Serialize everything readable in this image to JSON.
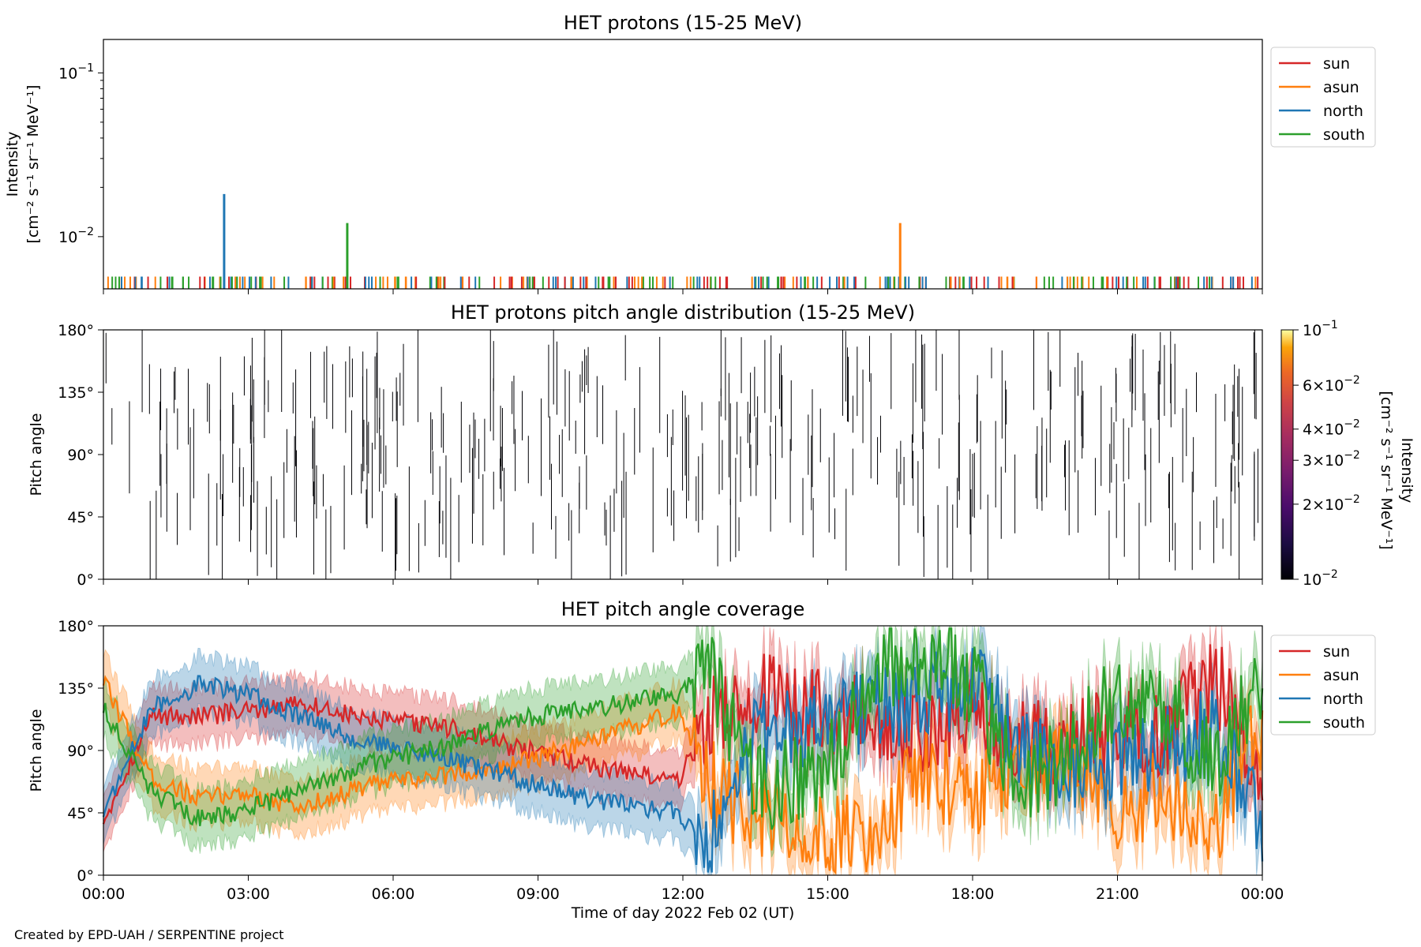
{
  "credit": "Created by EPD-UAH / SERPENTINE project",
  "colors": {
    "sun": "#d62728",
    "asun": "#ff7f0e",
    "north": "#1f77b4",
    "south": "#2ca02c"
  },
  "chart_data": [
    {
      "type": "line",
      "title": "HET protons (15-25 MeV)",
      "ylabel_line1": "Intensity",
      "ylabel_line2": "[cm⁻² s⁻¹ sr⁻¹ MeV⁻¹]",
      "yscale": "log",
      "ylim": [
        0.0048,
        0.16
      ],
      "xlim": [
        0,
        24
      ],
      "yticks": [
        {
          "v": 0.1,
          "base": "10",
          "exp": "−1"
        },
        {
          "v": 0.01,
          "base": "10",
          "exp": "−2"
        }
      ],
      "legend": [
        "sun",
        "asun",
        "north",
        "south"
      ],
      "legend_position": "outside-top-right",
      "baseline_value": 0.0057,
      "spikes": [
        {
          "series": "north",
          "x": 2.5,
          "value": 0.0182
        },
        {
          "series": "south",
          "x": 5.05,
          "value": 0.0121
        },
        {
          "series": "asun",
          "x": 16.5,
          "value": 0.0121
        }
      ]
    },
    {
      "type": "heatmap",
      "title": "HET protons pitch angle distribution (15-25 MeV)",
      "ylabel": "Pitch angle",
      "ylim": [
        0,
        180
      ],
      "xlim": [
        0,
        24
      ],
      "yticks": [
        "0°",
        "45°",
        "90°",
        "135°",
        "180°"
      ],
      "colorbar": {
        "label_line1": "Intensity",
        "label_line2": "[cm⁻² s⁻¹ sr⁻¹ MeV⁻¹]",
        "scale": "log",
        "range": [
          0.01,
          0.1
        ],
        "ticks": [
          {
            "v": 0.1,
            "mant": "10",
            "exp": "−1"
          },
          {
            "v": 0.06,
            "mant": "6×10",
            "exp": "−2"
          },
          {
            "v": 0.04,
            "mant": "4×10",
            "exp": "−2"
          },
          {
            "v": 0.03,
            "mant": "3×10",
            "exp": "−2"
          },
          {
            "v": 0.02,
            "mant": "2×10",
            "exp": "−2"
          },
          {
            "v": 0.01,
            "mant": "10",
            "exp": "−2"
          }
        ]
      }
    },
    {
      "type": "line",
      "title": "HET pitch angle coverage",
      "ylabel": "Pitch angle",
      "xlabel": "Time of day 2022 Feb 02 (UT)",
      "ylim": [
        0,
        180
      ],
      "xlim": [
        0,
        24
      ],
      "yticks": [
        "0°",
        "45°",
        "90°",
        "135°",
        "180°"
      ],
      "xticks": [
        "00:00",
        "03:00",
        "06:00",
        "09:00",
        "12:00",
        "15:00",
        "18:00",
        "21:00",
        "00:00"
      ],
      "legend": [
        "sun",
        "asun",
        "north",
        "south"
      ],
      "legend_position": "outside-top-right",
      "series": [
        {
          "name": "sun",
          "x": [
            0,
            1,
            2,
            3,
            4,
            5.5,
            7,
            8.5,
            10,
            11.9,
            12.5,
            13.5,
            15,
            16,
            17,
            18,
            19,
            20,
            21,
            22,
            23,
            24
          ],
          "values": [
            40,
            115,
            115,
            118,
            125,
            112,
            108,
            92,
            80,
            68,
            110,
            130,
            120,
            112,
            100,
            120,
            100,
            95,
            105,
            100,
            145,
            70
          ]
        },
        {
          "name": "asun",
          "x": [
            0,
            1,
            2,
            3,
            4,
            5.5,
            7,
            8.5,
            10,
            11.9,
            12.5,
            13.5,
            15,
            16,
            17,
            18,
            19,
            20,
            21,
            22,
            23,
            24
          ],
          "values": [
            140,
            70,
            55,
            60,
            48,
            65,
            72,
            80,
            95,
            118,
            70,
            40,
            30,
            35,
            75,
            55,
            70,
            80,
            50,
            60,
            35,
            110
          ]
        },
        {
          "name": "north",
          "x": [
            0,
            1,
            2,
            3,
            4,
            5.5,
            7,
            8.5,
            10,
            11.9,
            12.5,
            13.5,
            15,
            16,
            17,
            18,
            19,
            20,
            21,
            22,
            23,
            24
          ],
          "values": [
            45,
            120,
            138,
            130,
            115,
            95,
            85,
            70,
            55,
            45,
            20,
            100,
            110,
            120,
            130,
            140,
            90,
            70,
            80,
            90,
            110,
            40
          ]
        },
        {
          "name": "south",
          "x": [
            0,
            1,
            2,
            3,
            4,
            5.5,
            7,
            8.5,
            10,
            11.9,
            12.5,
            13.5,
            15,
            16,
            17,
            18,
            19,
            20,
            21,
            22,
            23,
            24
          ],
          "values": [
            120,
            60,
            40,
            48,
            60,
            80,
            92,
            112,
            120,
            130,
            150,
            60,
            80,
            150,
            160,
            140,
            60,
            90,
            130,
            120,
            80,
            140
          ]
        }
      ]
    }
  ]
}
